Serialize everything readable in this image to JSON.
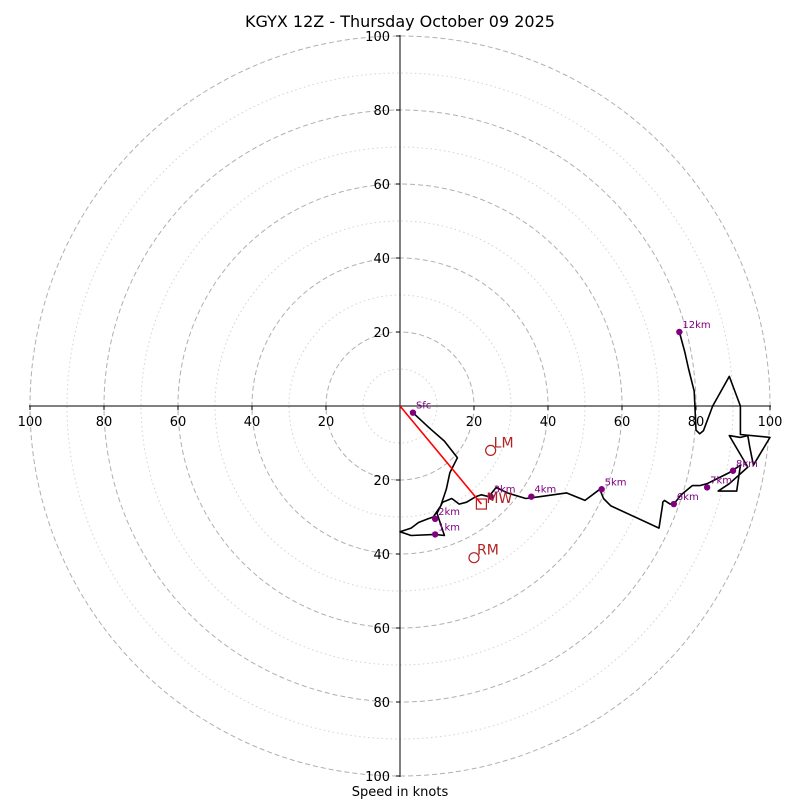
{
  "chart_data": {
    "type": "hodograph",
    "title": "KGYX 12Z - Thursday October 09 2025",
    "xlabel": "Speed in knots",
    "units": "knots",
    "axis_range": [
      -100,
      100
    ],
    "ring_major": [
      20,
      40,
      60,
      80,
      100
    ],
    "ring_minor": [
      10,
      30,
      50,
      70,
      90
    ],
    "x_ticks": [
      {
        "value": -100,
        "label": "100"
      },
      {
        "value": -80,
        "label": "80"
      },
      {
        "value": -60,
        "label": "60"
      },
      {
        "value": -40,
        "label": "40"
      },
      {
        "value": -20,
        "label": "20"
      },
      {
        "value": 20,
        "label": "20"
      },
      {
        "value": 40,
        "label": "40"
      },
      {
        "value": 60,
        "label": "60"
      },
      {
        "value": 80,
        "label": "80"
      },
      {
        "value": 100,
        "label": "100"
      }
    ],
    "y_ticks": [
      {
        "value": 100,
        "label": "100"
      },
      {
        "value": 80,
        "label": "80"
      },
      {
        "value": 60,
        "label": "60"
      },
      {
        "value": 40,
        "label": "40"
      },
      {
        "value": 20,
        "label": "20"
      },
      {
        "value": -20,
        "label": "20"
      },
      {
        "value": -40,
        "label": "40"
      },
      {
        "value": -60,
        "label": "60"
      },
      {
        "value": -80,
        "label": "80"
      },
      {
        "value": -100,
        "label": "100"
      }
    ],
    "hodograph_trace": {
      "u": [
        3.5,
        8,
        12,
        15.5,
        13.5,
        12.5,
        11,
        10,
        9,
        7.5,
        5,
        3,
        0,
        3,
        9.5,
        12,
        10,
        11.5,
        14,
        16,
        18,
        20.5,
        22,
        24,
        26,
        29,
        34,
        38,
        45,
        50,
        54,
        55,
        57,
        70,
        71,
        71,
        71.5,
        73,
        74,
        76,
        79,
        81,
        83,
        85,
        89,
        92,
        91,
        86,
        89,
        94,
        89,
        92,
        94,
        94.5,
        95.5,
        100,
        92,
        92,
        89,
        84.5,
        82,
        81,
        80,
        79.5,
        78,
        77,
        75.5
      ],
      "v": [
        -1.8,
        -6,
        -9.5,
        -14,
        -18,
        -22.5,
        -27,
        -28.5,
        -30,
        -30.5,
        -31.5,
        -33,
        -34,
        -35,
        -34.7,
        -35,
        -29,
        -26,
        -25,
        -26.5,
        -26,
        -24.5,
        -24,
        -24.5,
        -22,
        -23.5,
        -25,
        -24.5,
        -23.5,
        -25.5,
        -22.5,
        -25,
        -27,
        -33,
        -26.5,
        -26,
        -25.5,
        -26.5,
        -26.5,
        -24,
        -21.5,
        -21.5,
        -21,
        -20,
        -18,
        -16,
        -23,
        -23,
        -21,
        -16.5,
        -8,
        -8.5,
        -8,
        -11,
        -16,
        -8.5,
        -7.7,
        0,
        8,
        0,
        -6.7,
        -7.5,
        -6.5,
        4,
        10,
        14.5,
        20
      ]
    },
    "height_markers": [
      {
        "label": "Sfc",
        "u": 3.5,
        "v": -1.8
      },
      {
        "label": "1km",
        "u": 9.5,
        "v": -34.7
      },
      {
        "label": "2km",
        "u": 9.5,
        "v": -30.5
      },
      {
        "label": "3km",
        "u": 24.5,
        "v": -24.5
      },
      {
        "label": "4km",
        "u": 35.5,
        "v": -24.5
      },
      {
        "label": "5km",
        "u": 54.5,
        "v": -22.5
      },
      {
        "label": "6km",
        "u": 74,
        "v": -26.5
      },
      {
        "label": "7km",
        "u": 83,
        "v": -22
      },
      {
        "label": "8km",
        "u": 90,
        "v": -17.5
      },
      {
        "label": "12km",
        "u": 75.5,
        "v": 20
      }
    ],
    "storm_motion": [
      {
        "label": "LM",
        "u": 24.5,
        "v": -12
      },
      {
        "label": "RM",
        "u": 20,
        "v": -41
      },
      {
        "label": "MW",
        "u": 22,
        "v": -26.5
      }
    ],
    "shear_vector": {
      "from_u": 0,
      "from_v": 0,
      "to_u": 22,
      "to_v": -26.5
    },
    "colors": {
      "trace": "#000000",
      "marker": "#800080",
      "storm_motion": "#b22222",
      "shear_vector": "#ff0000",
      "ring_major": "#b0b0b0",
      "ring_minor": "#d3d3d3",
      "axis": "#000000"
    }
  }
}
